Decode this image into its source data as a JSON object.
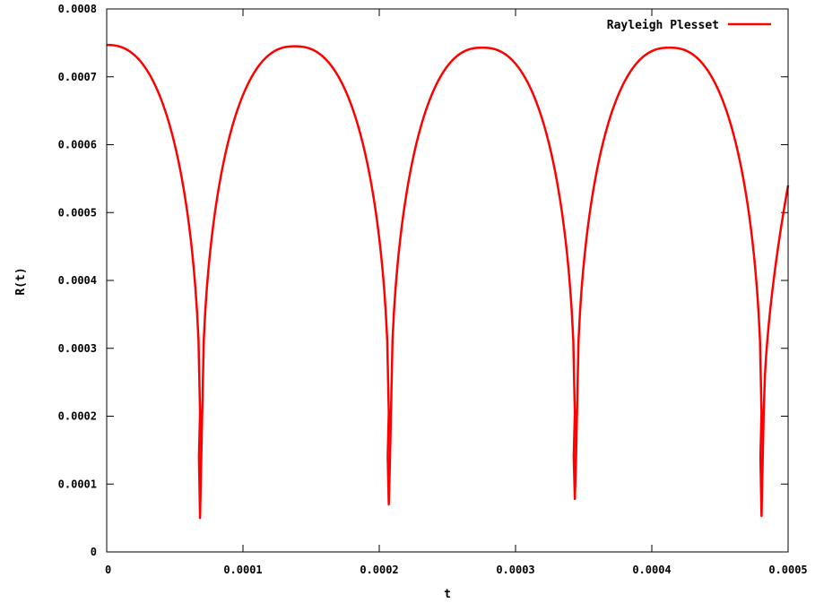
{
  "chart_data": {
    "type": "line",
    "title": "",
    "xlabel": "t",
    "ylabel": "R(t)",
    "xlim": [
      0,
      0.0005
    ],
    "ylim": [
      0,
      0.0008
    ],
    "xticks": [
      "0",
      "0.0001",
      "0.0002",
      "0.0003",
      "0.0004",
      "0.0005"
    ],
    "yticks": [
      "0",
      "0.0001",
      "0.0002",
      "0.0003",
      "0.0004",
      "0.0005",
      "0.0006",
      "0.0007",
      "0.0008"
    ],
    "legend_position": "top-right",
    "grid": false,
    "series": [
      {
        "name": "Rayleigh Plesset",
        "color": "#ff0000",
        "collapse_times": [
          6.85e-05,
          0.000207,
          0.0003435,
          0.0004805
        ],
        "collapse_minima": [
          5e-05,
          7e-05,
          7.8e-05,
          5.3e-05
        ],
        "peaks": [
          {
            "t": 0.0,
            "R": 0.000747
          },
          {
            "t": 0.000138,
            "R": 0.000745
          },
          {
            "t": 0.0002755,
            "R": 0.000743
          },
          {
            "t": 0.000413,
            "R": 0.000743
          }
        ],
        "end_point": {
          "t": 0.0005,
          "R": 0.00054
        }
      }
    ]
  }
}
